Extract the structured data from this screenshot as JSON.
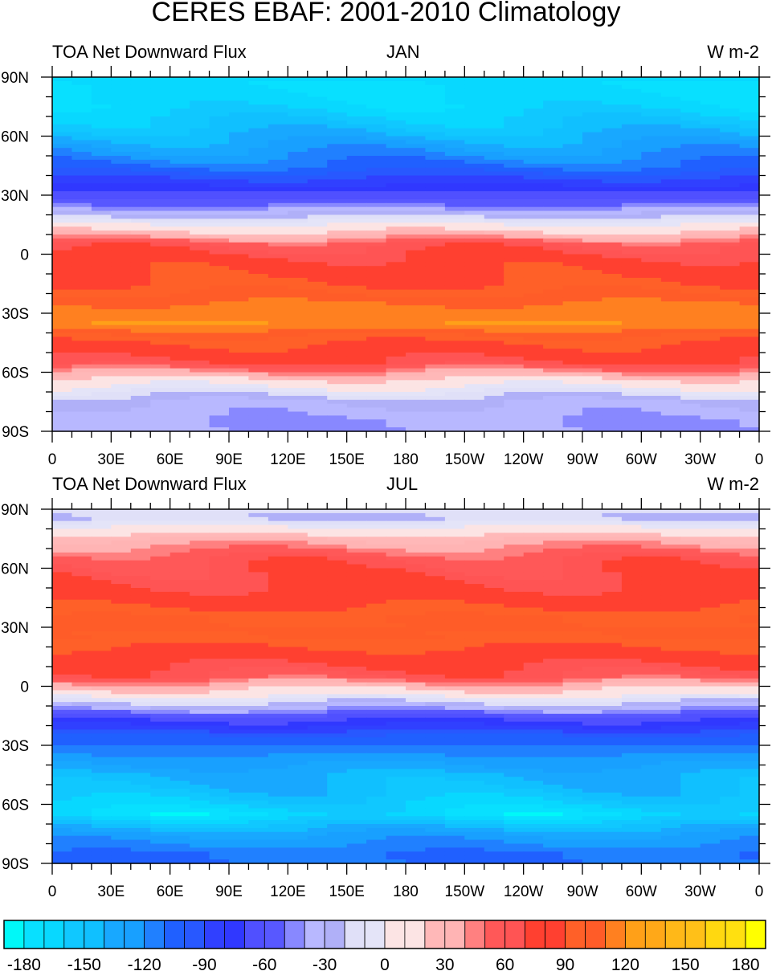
{
  "title": "CERES EBAF: 2001-2010 Climatology",
  "panels": [
    {
      "left_label": "TOA Net Downward Flux",
      "center_label": "JAN",
      "right_label": "W m-2"
    },
    {
      "left_label": "TOA Net Downward Flux",
      "center_label": "JUL",
      "right_label": "W m-2"
    }
  ],
  "lat_labels": [
    "90N",
    "60N",
    "30N",
    "0",
    "30S",
    "60S",
    "90S"
  ],
  "lon_labels": [
    "0",
    "30E",
    "60E",
    "90E",
    "120E",
    "150E",
    "180",
    "150W",
    "120W",
    "90W",
    "60W",
    "30W",
    "0"
  ],
  "colorbar": {
    "labels": [
      "-180",
      "-150",
      "-120",
      "-90",
      "-60",
      "-30",
      "0",
      "30",
      "60",
      "90",
      "120",
      "150",
      "180"
    ],
    "levels_min": -180,
    "levels_max": 180,
    "level_step": 10,
    "colors": [
      "#00f8f8",
      "#08e0ff",
      "#08d8ff",
      "#10c8ff",
      "#10c0ff",
      "#18a8ff",
      "#18a0ff",
      "#2080ff",
      "#2060ff",
      "#2858ff",
      "#3040ff",
      "#3038ff",
      "#5050ff",
      "#5858ff",
      "#8888ff",
      "#b8b8ff",
      "#b0b0f8",
      "#e0e0f8",
      "#e4e4f8",
      "#fce4e4",
      "#fce4e4",
      "#ffb8b8",
      "#ffb4b4",
      "#ff8080",
      "#ff5858",
      "#ff5454",
      "#ff4030",
      "#ff4030",
      "#ff6028",
      "#ff5c28",
      "#ff8020",
      "#ffa018",
      "#ffa818",
      "#ffb818",
      "#ffc018",
      "#ffd810",
      "#ffe010",
      "#ffff00"
    ]
  }
}
